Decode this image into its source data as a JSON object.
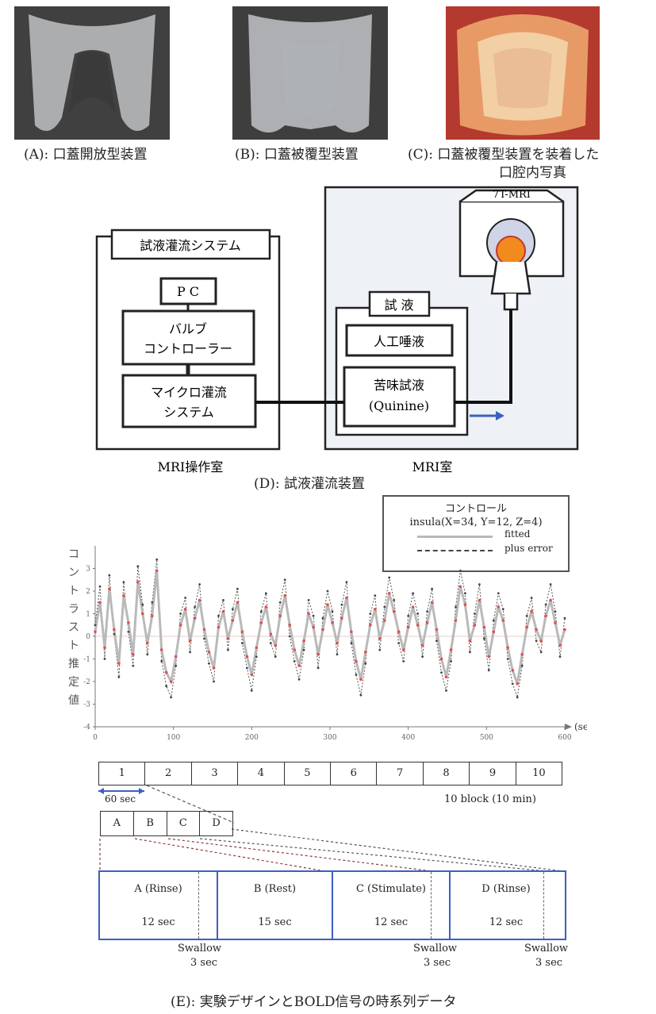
{
  "photos": {
    "a_caption": "(A): 口蓋開放型装置",
    "b_caption": "(B): 口蓋被覆型装置",
    "c_caption_line1": "(C): 口蓋被覆型装置を装着した",
    "c_caption_line2": "口腔内写真"
  },
  "setup": {
    "mri_label": "7T-MRI",
    "perfusion_system": "試液灌流システム",
    "pc": "P C",
    "valve_line1": "バルブ",
    "valve_line2": "コントローラー",
    "micro_line1": "マイクロ灌流",
    "micro_line2": "システム",
    "solution_title": "試 液",
    "saliva": "人工唾液",
    "bitter_line1": "苦味試液",
    "bitter_line2": "(Quinine)",
    "control_room": "MRI操作室",
    "mri_room": "MRI室",
    "caption": "(D): 試液灌流装置"
  },
  "chart": {
    "legend_title": "コントロール",
    "legend_coord": "insula(X=34, Y=12, Z=4)",
    "ylabel": "コントラスト推定値",
    "xunit": "(sec)"
  },
  "chart_data": {
    "type": "line",
    "title": "",
    "xlabel": "(sec)",
    "ylabel": "コントラスト推定値",
    "xlim": [
      0,
      600
    ],
    "ylim": [
      -4,
      4
    ],
    "x_ticks": [
      0,
      100,
      200,
      300,
      400,
      500,
      600
    ],
    "y_ticks": [
      -4,
      -3,
      -2,
      -1,
      0,
      1,
      2,
      3
    ],
    "legend_position": "top-right",
    "series": [
      {
        "name": "fitted",
        "values": [
          0.2,
          1.5,
          -0.5,
          2.1,
          0.3,
          -1.2,
          1.8,
          0.6,
          -0.8,
          2.4,
          1.0,
          -0.3,
          0.9,
          2.9,
          -0.6,
          -1.6,
          -2.0,
          -0.9,
          0.5,
          1.2,
          -0.2,
          0.8,
          1.6,
          0.3,
          -0.7,
          -1.4,
          0.4,
          1.1,
          -0.1,
          0.7,
          1.5,
          0.2,
          -0.9,
          -1.7,
          -0.5,
          0.6,
          1.3,
          0.1,
          -0.4,
          0.9,
          1.8,
          0.5,
          -0.6,
          -1.3,
          -0.2,
          1.0,
          0.4,
          -0.8,
          0.3,
          1.4,
          0.6,
          -0.3,
          0.8,
          1.7,
          0.2,
          -1.1,
          -1.9,
          -0.7,
          0.5,
          1.2,
          -0.1,
          0.7,
          1.9,
          1.1,
          0.2,
          -0.6,
          0.4,
          1.3,
          0.5,
          -0.4,
          0.6,
          1.5,
          0.3,
          -1.0,
          -1.8,
          -0.6,
          0.7,
          2.2,
          1.4,
          -0.2,
          0.5,
          1.6,
          0.4,
          -0.9,
          0.2,
          1.3,
          0.7,
          -0.5,
          -1.5,
          -2.1,
          -0.8,
          0.4,
          1.1,
          0.3,
          -0.2,
          0.9,
          1.6,
          0.6,
          -0.4,
          0.3
        ]
      },
      {
        "name": "plus error",
        "values": [
          0.5,
          2.2,
          -1.0,
          2.7,
          0.1,
          -1.8,
          2.4,
          0.2,
          -1.3,
          3.1,
          1.4,
          -0.8,
          1.5,
          3.4,
          -1.1,
          -2.2,
          -2.7,
          -1.3,
          1.0,
          1.7,
          -0.7,
          1.3,
          2.3,
          -0.1,
          -1.2,
          -2.0,
          0.9,
          1.6,
          -0.6,
          1.2,
          2.1,
          -0.3,
          -1.4,
          -2.4,
          -0.9,
          1.1,
          1.9,
          -0.3,
          -0.9,
          1.5,
          2.5,
          0.0,
          -1.1,
          -1.9,
          -0.6,
          1.6,
          0.9,
          -1.4,
          0.8,
          2.0,
          1.1,
          -0.8,
          1.4,
          2.4,
          -0.3,
          -1.7,
          -2.6,
          -1.2,
          1.0,
          1.8,
          -0.6,
          1.3,
          2.6,
          1.6,
          -0.3,
          -1.1,
          0.9,
          1.9,
          1.0,
          -0.9,
          1.1,
          2.1,
          -0.2,
          -1.6,
          -2.4,
          -1.1,
          1.3,
          2.9,
          1.9,
          -0.7,
          1.0,
          2.3,
          -0.1,
          -1.5,
          0.7,
          1.9,
          1.2,
          -1.0,
          -2.1,
          -2.7,
          -1.3,
          0.9,
          1.7,
          -0.2,
          -0.7,
          1.4,
          2.3,
          1.1,
          -0.9,
          0.8
        ]
      }
    ]
  },
  "design": {
    "blocks": [
      "1",
      "2",
      "3",
      "4",
      "5",
      "6",
      "7",
      "8",
      "9",
      "10"
    ],
    "sixty_sec": "60 sec",
    "block_note": "10 block (10 min)",
    "sub_blocks": [
      "A",
      "B",
      "C",
      "D"
    ],
    "phases": [
      {
        "label": "A (Rinse)",
        "duration": "12 sec"
      },
      {
        "label": "B (Rest)",
        "duration": "15 sec"
      },
      {
        "label": "C (Stimulate)",
        "duration": "12 sec"
      },
      {
        "label": "D (Rinse)",
        "duration": "12 sec"
      }
    ],
    "swallow1_word": "Swallow",
    "swallow1_dur": "3 sec",
    "swallow2_word": "Swallow",
    "swallow2_dur": "3 sec",
    "swallow3_word": "Swallow",
    "swallow3_dur": "3 sec"
  },
  "figure_caption": "(E): 実験デザインとBOLD信号の時系列データ"
}
